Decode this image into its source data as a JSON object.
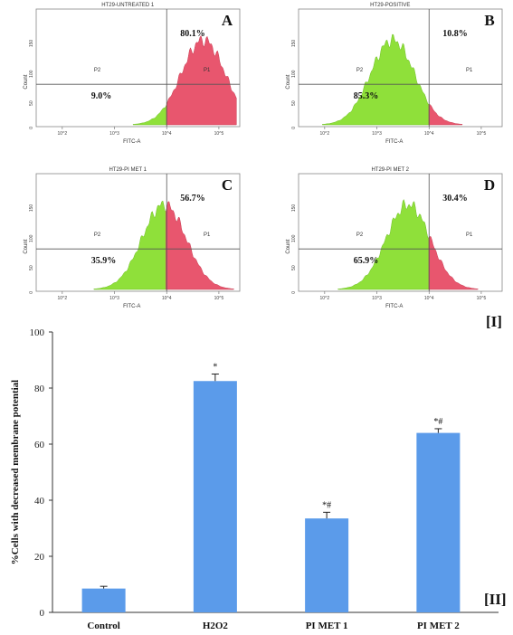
{
  "chart_data": [
    {
      "type": "area",
      "panel": "A",
      "title": "HT29-UNTREATED 1",
      "xlabel": "FITC-A",
      "ylabel": "Count",
      "x_ticks": [
        "10^2",
        "10^3",
        "10^4",
        "10^5"
      ],
      "y_ticks": [
        "0",
        "50",
        "100",
        "150"
      ],
      "gates": [
        {
          "name": "P1",
          "percent": "80.1%"
        },
        {
          "name": "P2",
          "percent": "9.0%"
        }
      ],
      "threshold_log10": 4.0,
      "peak_log10": 4.7
    },
    {
      "type": "area",
      "panel": "B",
      "title": "HT29-POSITIVE",
      "xlabel": "FITC-A",
      "ylabel": "Count",
      "x_ticks": [
        "10^2",
        "10^3",
        "10^4",
        "10^5"
      ],
      "y_ticks": [
        "0",
        "50",
        "100",
        "150"
      ],
      "gates": [
        {
          "name": "P1",
          "percent": "10.8%"
        },
        {
          "name": "P2",
          "percent": "85.3%"
        }
      ],
      "threshold_log10": 4.0,
      "peak_log10": 3.3
    },
    {
      "type": "area",
      "panel": "C",
      "title": "HT29-PI MET 1",
      "xlabel": "FITC-A",
      "ylabel": "Count",
      "x_ticks": [
        "10^2",
        "10^3",
        "10^4",
        "10^5"
      ],
      "y_ticks": [
        "0",
        "50",
        "100",
        "150"
      ],
      "gates": [
        {
          "name": "P1",
          "percent": "56.7%"
        },
        {
          "name": "P2",
          "percent": "35.9%"
        }
      ],
      "threshold_log10": 4.0,
      "peak_log10": 3.95
    },
    {
      "type": "area",
      "panel": "D",
      "title": "HT29-PI MET 2",
      "xlabel": "FITC-A",
      "ylabel": "Count",
      "x_ticks": [
        "10^2",
        "10^3",
        "10^4",
        "10^5"
      ],
      "y_ticks": [
        "0",
        "50",
        "100",
        "150"
      ],
      "gates": [
        {
          "name": "P1",
          "percent": "30.4%"
        },
        {
          "name": "P2",
          "percent": "65.9%"
        }
      ],
      "threshold_log10": 4.0,
      "peak_log10": 3.6
    },
    {
      "type": "bar",
      "ylabel": "%Cells with decreased membrane potential",
      "ylim": [
        0,
        100
      ],
      "y_ticks": [
        0,
        20,
        40,
        60,
        80,
        100
      ],
      "categories": [
        "Control",
        "H2O2",
        "PI MET 1",
        "PI MET 2"
      ],
      "values": [
        8.5,
        82.5,
        33.5,
        64
      ],
      "errors": [
        0.8,
        2.5,
        2.2,
        1.5
      ],
      "significance": [
        "",
        "*",
        "*#",
        "*#"
      ],
      "bar_color": "#5b9bea"
    }
  ],
  "labels": {
    "section_one": "[I]",
    "section_two": "[II]"
  },
  "colors": {
    "gated_positive": "#e8566e",
    "gated_negative": "#8fe03a"
  }
}
